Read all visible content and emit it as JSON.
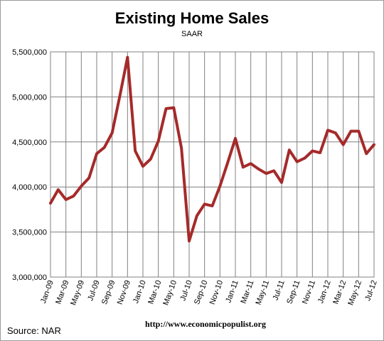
{
  "chart_data": {
    "type": "line",
    "title": "Existing Home Sales",
    "subtitle": "SAAR",
    "xlabel": "",
    "ylabel": "",
    "ylim": [
      3000000,
      5500000
    ],
    "yticks": [
      3000000,
      3500000,
      4000000,
      4500000,
      5000000,
      5500000
    ],
    "ytick_labels": [
      "3,000,000",
      "3,500,000",
      "4,000,000",
      "4,500,000",
      "5,000,000",
      "5,500,000"
    ],
    "grid": true,
    "legend": "none",
    "line_color": "#A52A2A",
    "categories": [
      "Jan-09",
      "Feb-09",
      "Mar-09",
      "Apr-09",
      "May-09",
      "Jun-09",
      "Jul-09",
      "Aug-09",
      "Sep-09",
      "Oct-09",
      "Nov-09",
      "Dec-09",
      "Jan-10",
      "Feb-10",
      "Mar-10",
      "Apr-10",
      "May-10",
      "Jun-10",
      "Jul-10",
      "Aug-10",
      "Sep-10",
      "Oct-10",
      "Nov-10",
      "Dec-10",
      "Jan-11",
      "Feb-11",
      "Mar-11",
      "Apr-11",
      "May-11",
      "Jun-11",
      "Jul-11",
      "Aug-11",
      "Sep-11",
      "Oct-11",
      "Nov-11",
      "Dec-11",
      "Jan-12",
      "Feb-12",
      "Mar-12",
      "Apr-12",
      "May-12",
      "Jun-12",
      "Jul-12"
    ],
    "xtick_labels": [
      "Jan-09",
      "Mar-09",
      "May-09",
      "Jul-09",
      "Sep-09",
      "Nov-09",
      "Jan-10",
      "Mar-10",
      "May-10",
      "Jul-10",
      "Sep-10",
      "Nov-10",
      "Jan-11",
      "Mar-11",
      "May-11",
      "Jul-11",
      "Sep-11",
      "Nov-11",
      "Jan-12",
      "Mar-12",
      "May-12",
      "Jul-12"
    ],
    "series": [
      {
        "values": [
          3820000,
          3970000,
          3860000,
          3900000,
          4010000,
          4100000,
          4370000,
          4440000,
          4600000,
          5010000,
          5440000,
          4400000,
          4230000,
          4310000,
          4510000,
          4870000,
          4880000,
          4430000,
          3400000,
          3680000,
          3810000,
          3790000,
          4010000,
          4270000,
          4540000,
          4220000,
          4260000,
          4200000,
          4150000,
          4180000,
          4050000,
          4410000,
          4280000,
          4320000,
          4400000,
          4380000,
          4630000,
          4600000,
          4470000,
          4620000,
          4620000,
          4370000,
          4470000
        ]
      }
    ]
  },
  "footer": {
    "source": "Source:  NAR",
    "website": "http://www.economicpopulist.org"
  }
}
